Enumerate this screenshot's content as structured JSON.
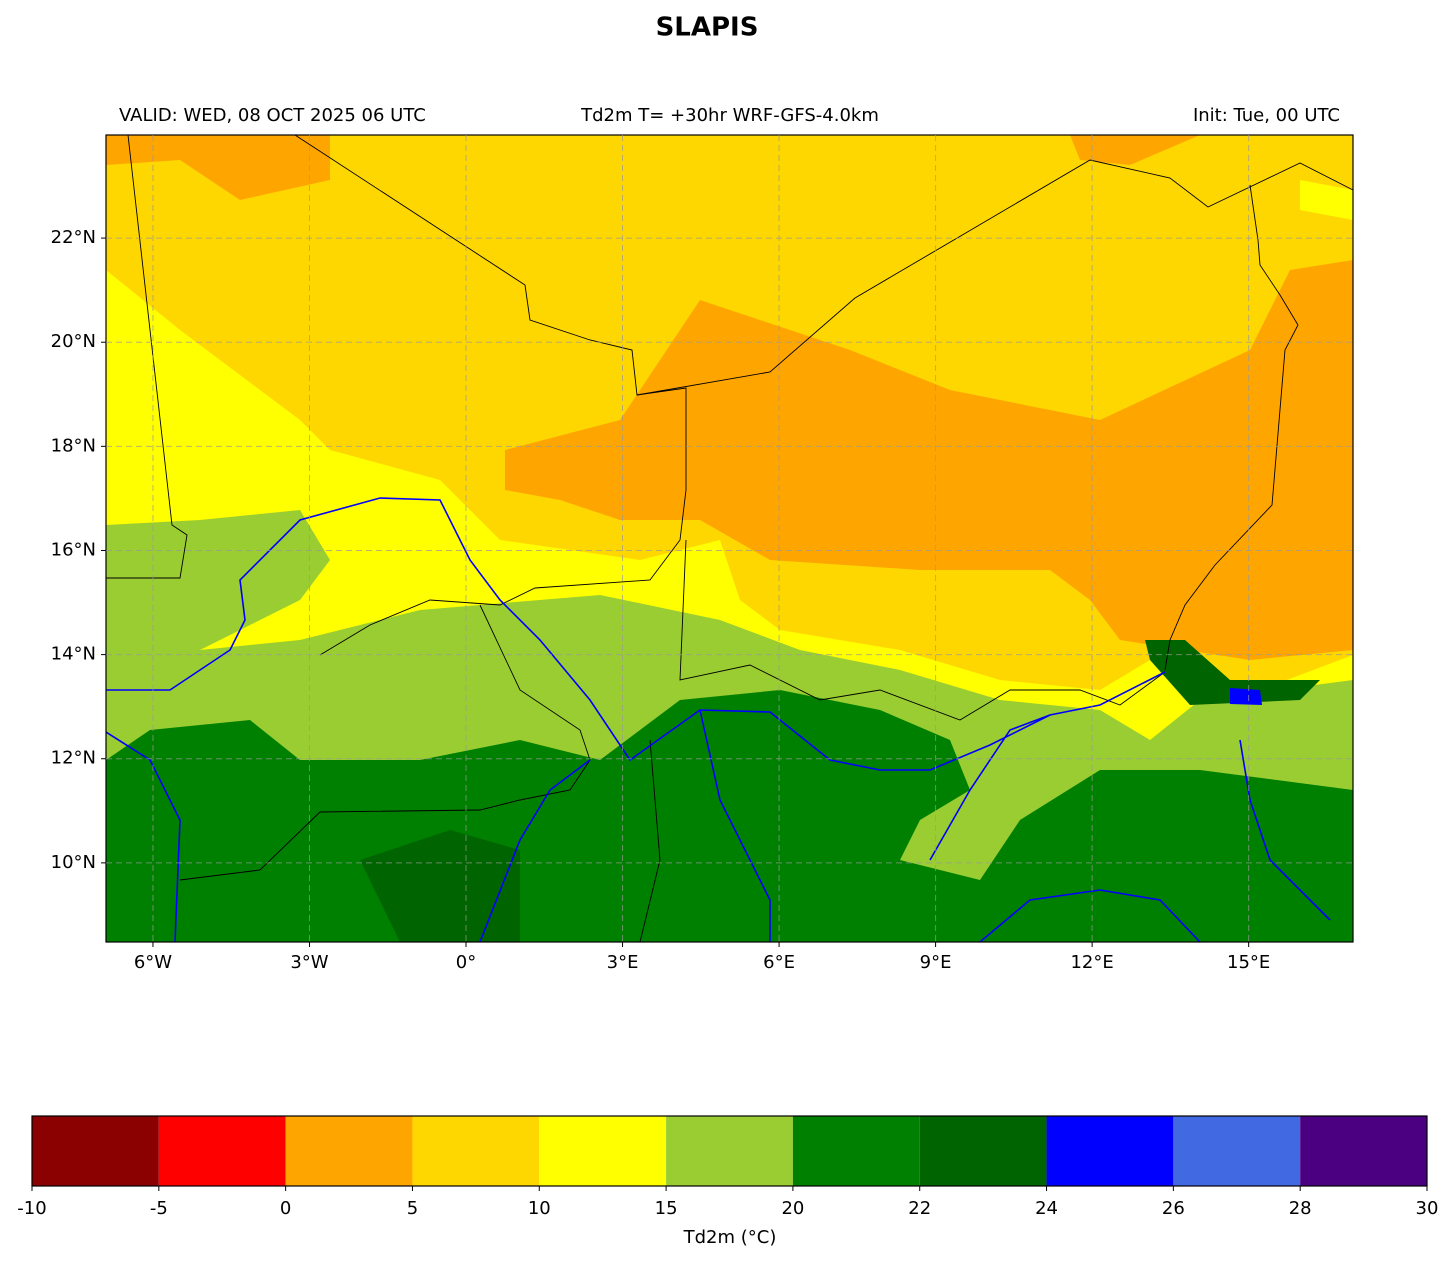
{
  "title": "SLAPIS",
  "header": {
    "valid": "VALID: WED, 08 OCT 2025 06 UTC",
    "run": "Td2m T= +30hr WRF-GFS-4.0km",
    "init": "Init: Tue, 00 UTC"
  },
  "map": {
    "xlim": [
      -6.9,
      17.0
    ],
    "ylim": [
      8.48,
      23.98
    ],
    "grid": true,
    "xticks": [
      {
        "value": -6,
        "label": "6°W"
      },
      {
        "value": -3,
        "label": "3°W"
      },
      {
        "value": 0,
        "label": "0°"
      },
      {
        "value": 3,
        "label": "3°E"
      },
      {
        "value": 6,
        "label": "6°E"
      },
      {
        "value": 9,
        "label": "9°E"
      },
      {
        "value": 12,
        "label": "12°E"
      },
      {
        "value": 15,
        "label": "15°E"
      }
    ],
    "yticks": [
      {
        "value": 10,
        "label": "10°N"
      },
      {
        "value": 12,
        "label": "12°N"
      },
      {
        "value": 14,
        "label": "14°N"
      },
      {
        "value": 16,
        "label": "16°N"
      },
      {
        "value": 18,
        "label": "18°N"
      },
      {
        "value": 20,
        "label": "20°N"
      },
      {
        "value": 22,
        "label": "22°N"
      }
    ]
  },
  "colorbar": {
    "label": "Td2m (°C)",
    "ticks": [
      -10,
      -5,
      0,
      5,
      10,
      15,
      20,
      22,
      24,
      26,
      28,
      30
    ],
    "colors": [
      "#8b0000",
      "#ff0000",
      "#ffa500",
      "#ffd700",
      "#ffff00",
      "#9acd32",
      "#008000",
      "#006400",
      "#0000ff",
      "#4169e1",
      "#4b0082"
    ]
  }
}
